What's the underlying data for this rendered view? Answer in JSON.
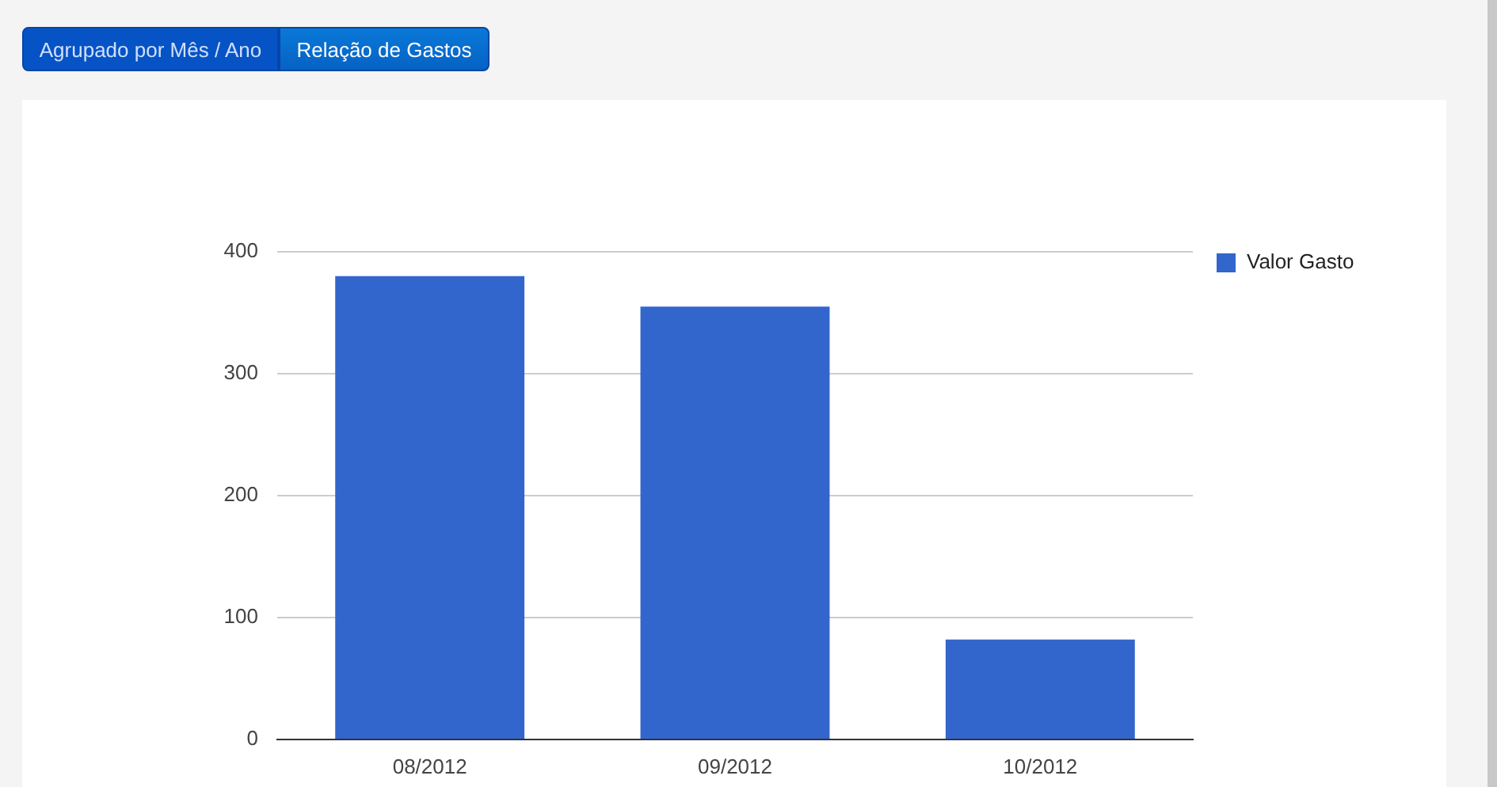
{
  "chart_data": {
    "type": "bar",
    "annotations": [
      "Agrupado por Mês / Ano",
      "Relação de Gastos"
    ],
    "categories": [
      "08/2012",
      "09/2012",
      "10/2012"
    ],
    "series": [
      {
        "name": "Valor Gasto",
        "color": "#3366cc",
        "values": [
          380,
          355,
          82
        ]
      }
    ],
    "ylim": [
      0,
      400
    ],
    "yticks": [
      0,
      100,
      200,
      300,
      400
    ],
    "grid": "y",
    "legend": "right"
  }
}
